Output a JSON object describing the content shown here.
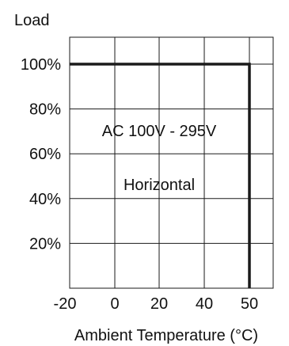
{
  "chart_data": {
    "type": "line",
    "ylabel": "Load",
    "xlabel": "Ambient Temperature (°C)",
    "x_ticks": [
      "-20",
      "0",
      "20",
      "40",
      "50"
    ],
    "y_ticks": [
      "20%",
      "40%",
      "60%",
      "80%",
      "100%"
    ],
    "annotations": [
      "AC 100V - 295V",
      "Horizontal"
    ],
    "series": [
      {
        "x": [
          "-20",
          "50",
          "50"
        ],
        "y": [
          100,
          100,
          0
        ]
      }
    ],
    "ylim": [
      0,
      110
    ],
    "grid": true,
    "line_color": "#1a1a1a",
    "grid_color": "#1a1a1a"
  }
}
